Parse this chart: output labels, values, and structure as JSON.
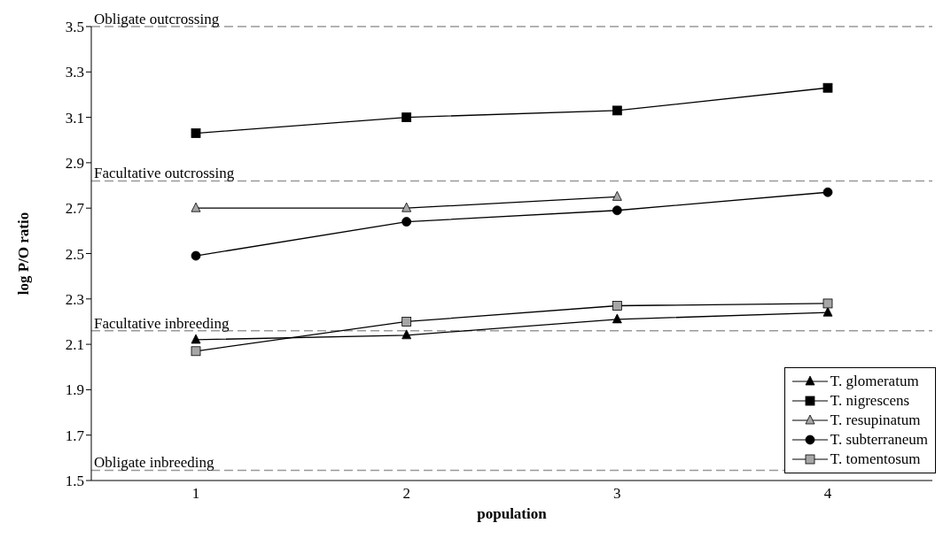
{
  "chart_data": {
    "type": "line",
    "xlabel": "population",
    "ylabel": "log P/O ratio",
    "categories": [
      "1",
      "2",
      "3",
      "4"
    ],
    "ylim": [
      1.5,
      3.5
    ],
    "yticks": [
      1.5,
      1.7,
      1.9,
      2.1,
      2.3,
      2.5,
      2.7,
      2.9,
      3.1,
      3.3,
      3.5
    ],
    "grid": false,
    "legend": "bottom right",
    "line_style": "solid",
    "series": [
      {
        "name": "T. glomeratum",
        "color": "#000000",
        "marker": "triangle",
        "values": [
          2.12,
          2.14,
          2.21,
          2.24
        ]
      },
      {
        "name": "T. nigrescens",
        "color": "#000000",
        "marker": "square",
        "values": [
          3.03,
          3.1,
          3.13,
          3.23
        ]
      },
      {
        "name": "T. resupinatum",
        "color": "#a6a6a6",
        "marker": "triangle",
        "values": [
          2.7,
          2.7,
          2.75,
          null
        ]
      },
      {
        "name": "T. subterraneum",
        "color": "#000000",
        "marker": "circle",
        "values": [
          2.49,
          2.64,
          2.69,
          2.77
        ]
      },
      {
        "name": "T. tomentosum",
        "color": "#a6a6a6",
        "marker": "square",
        "values": [
          2.07,
          2.2,
          2.27,
          2.28
        ]
      }
    ],
    "ref_lines": [
      {
        "axis": "y",
        "value": 3.5,
        "label": "Obligate outcrossing",
        "color": "#999999",
        "line_style": "dashed"
      },
      {
        "axis": "y",
        "value": 2.82,
        "label": "Facultative outcrossing",
        "color": "#999999",
        "line_style": "dashed"
      },
      {
        "axis": "y",
        "value": 2.16,
        "label": "Facultative inbreeding",
        "color": "#999999",
        "line_style": "dashed"
      },
      {
        "axis": "y",
        "value": 1.545,
        "label": "Obligate inbreeding",
        "color": "#999999",
        "line_style": "dashed"
      }
    ]
  }
}
